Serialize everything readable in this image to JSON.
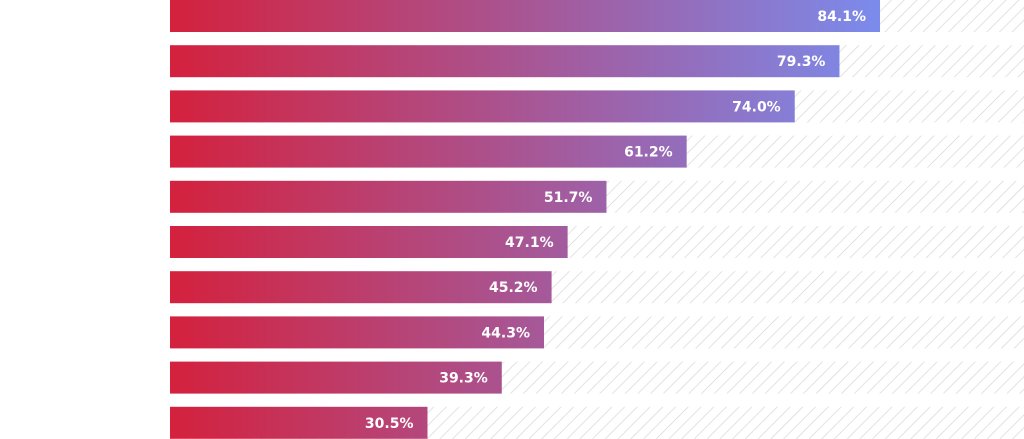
{
  "chart_data": {
    "type": "bar",
    "orientation": "horizontal",
    "values": [
      84.1,
      79.3,
      74.0,
      61.2,
      51.7,
      47.1,
      45.2,
      44.3,
      39.3,
      30.5
    ],
    "data_labels": [
      "84.1%",
      "79.3%",
      "74.0%",
      "61.2%",
      "51.7%",
      "47.1%",
      "45.2%",
      "44.3%",
      "39.3%",
      "30.5%"
    ],
    "xlim": [
      0,
      100
    ],
    "grid": false,
    "legend": "none"
  },
  "colors": {
    "bar_start": "#d4213d",
    "bar_end": "#7b8bec",
    "track_hatch": "#d6d6d6",
    "label": "#ffffff"
  }
}
